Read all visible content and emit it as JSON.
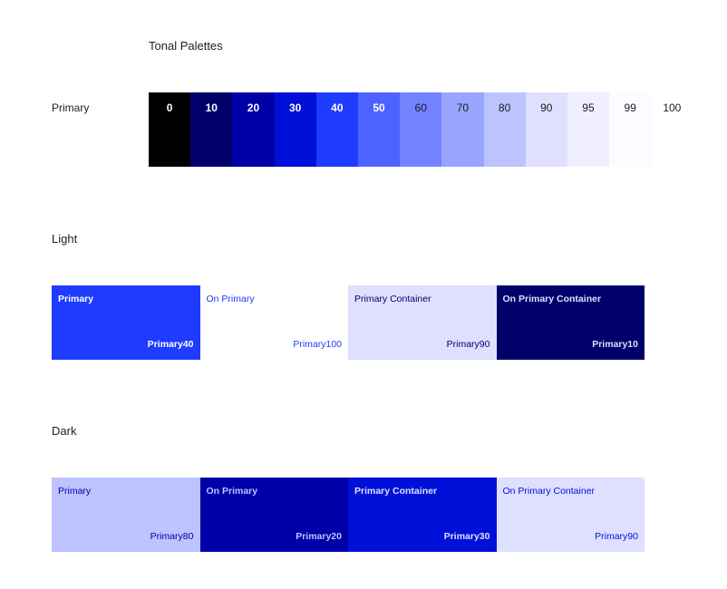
{
  "title": "Tonal Palettes",
  "palette": {
    "label": "Primary",
    "swatches": [
      {
        "tone": "0",
        "bg": "#000000",
        "fg": "#ffffff"
      },
      {
        "tone": "10",
        "bg": "#00006b",
        "fg": "#ffffff"
      },
      {
        "tone": "20",
        "bg": "#0000a8",
        "fg": "#ffffff"
      },
      {
        "tone": "30",
        "bg": "#0010d9",
        "fg": "#ffffff"
      },
      {
        "tone": "40",
        "bg": "#1f3bff",
        "fg": "#ffffff"
      },
      {
        "tone": "50",
        "bg": "#4d62ff",
        "fg": "#ffffff"
      },
      {
        "tone": "60",
        "bg": "#7383ff",
        "fg": "#1c1b1f"
      },
      {
        "tone": "70",
        "bg": "#99a4ff",
        "fg": "#1c1b1f"
      },
      {
        "tone": "80",
        "bg": "#bcc3ff",
        "fg": "#1c1b1f"
      },
      {
        "tone": "90",
        "bg": "#dfe0ff",
        "fg": "#1c1b1f"
      },
      {
        "tone": "95",
        "bg": "#f0efff",
        "fg": "#1c1b1f"
      },
      {
        "tone": "99",
        "bg": "#fdfbff",
        "fg": "#1c1b1f"
      },
      {
        "tone": "100",
        "bg": "#ffffff",
        "fg": "#1c1b1f"
      }
    ]
  },
  "light": {
    "label": "Light",
    "roles": [
      {
        "name": "Primary",
        "token": "Primary40",
        "bg": "#1f3bff",
        "fg": "#ffffff",
        "bold": true
      },
      {
        "name": "On Primary",
        "token": "Primary100",
        "bg": "#ffffff",
        "fg": "#1f3bff",
        "bold": false
      },
      {
        "name": "Primary Container",
        "token": "Primary90",
        "bg": "#dfe0ff",
        "fg": "#00006b",
        "bold": false
      },
      {
        "name": "On Primary Container",
        "token": "Primary10",
        "bg": "#00006b",
        "fg": "#dfe0ff",
        "bold": true
      }
    ]
  },
  "dark": {
    "label": "Dark",
    "roles": [
      {
        "name": "Primary",
        "token": "Primary80",
        "bg": "#bcc3ff",
        "fg": "#0000a8",
        "bold": false
      },
      {
        "name": "On Primary",
        "token": "Primary20",
        "bg": "#0000a8",
        "fg": "#bcc3ff",
        "bold": true
      },
      {
        "name": "Primary Container",
        "token": "Primary30",
        "bg": "#0010d9",
        "fg": "#dfe0ff",
        "bold": true
      },
      {
        "name": "On Primary Container",
        "token": "Primary90",
        "bg": "#dfe0ff",
        "fg": "#0010d9",
        "bold": false
      }
    ]
  }
}
